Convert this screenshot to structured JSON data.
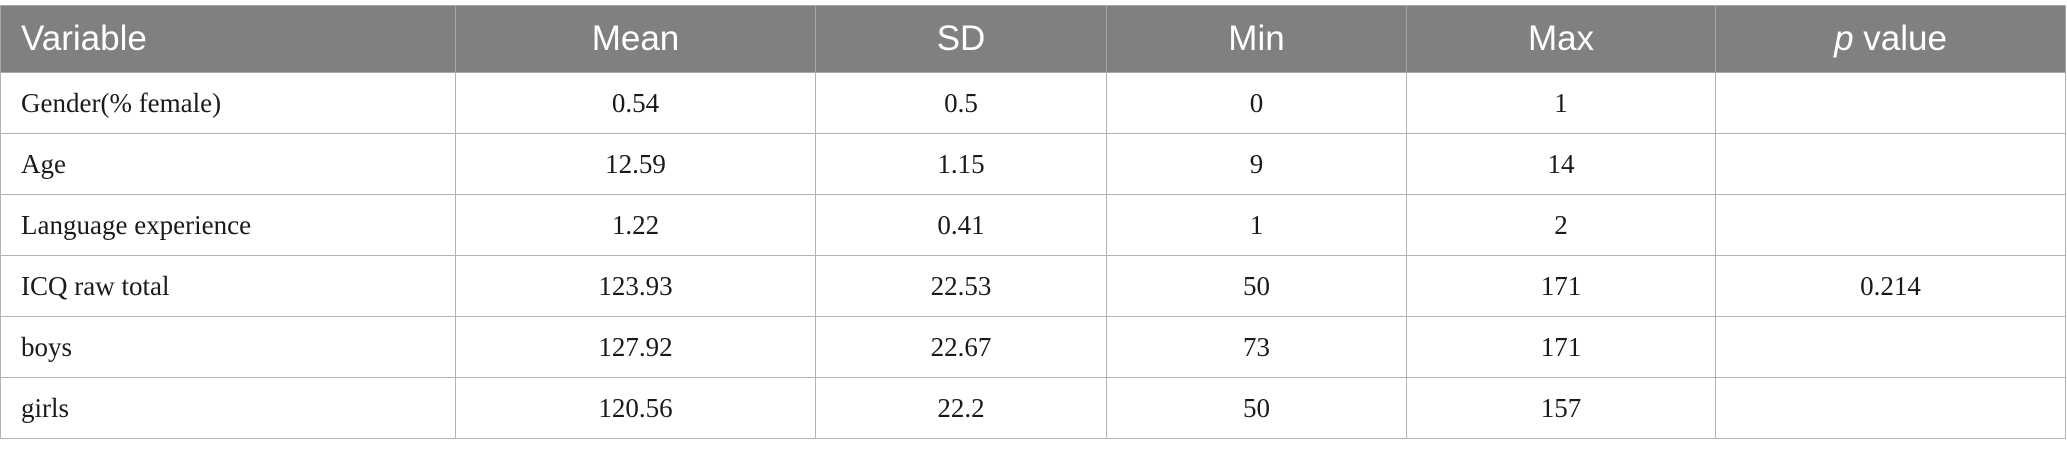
{
  "table": {
    "headers": {
      "variable": "Variable",
      "mean": "Mean",
      "sd": "SD",
      "min": "Min",
      "max": "Max",
      "p_italic": "p",
      "p_rest": " value"
    },
    "rows": [
      [
        "Gender(% female)",
        "0.54",
        "0.5",
        "0",
        "1",
        ""
      ],
      [
        "Age",
        "12.59",
        "1.15",
        "9",
        "14",
        ""
      ],
      [
        "Language experience",
        "1.22",
        "0.41",
        "1",
        "2",
        ""
      ],
      [
        "ICQ raw total",
        "123.93",
        "22.53",
        "50",
        "171",
        "0.214"
      ],
      [
        "boys",
        "127.92",
        "22.67",
        "73",
        "171",
        ""
      ],
      [
        "girls",
        "120.56",
        "22.2",
        "50",
        "157",
        ""
      ]
    ]
  },
  "colors": {
    "header_bg": "#808080",
    "header_text": "#ffffff",
    "grid": "#b3b3b3"
  }
}
